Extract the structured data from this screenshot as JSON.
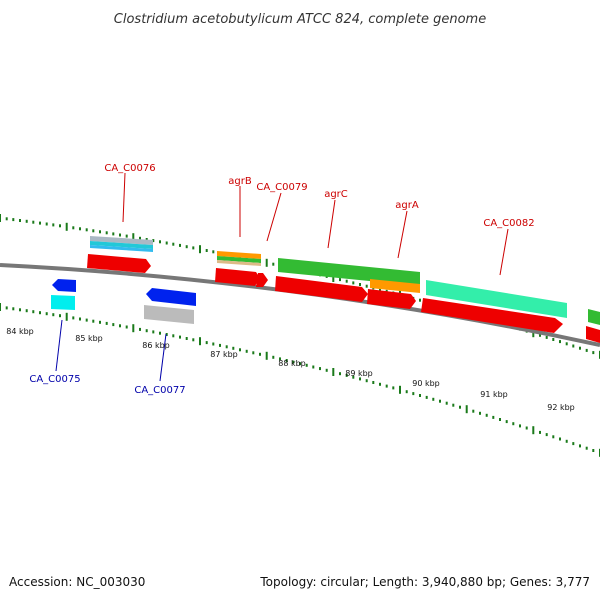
{
  "title": "Clostridium acetobutylicum ATCC 824, complete genome",
  "footer": {
    "accession": "Accession: NC_003030",
    "summary": "Topology: circular; Length: 3,940,880 bp; Genes: 3,777"
  },
  "colors": {
    "forward_label": "#cc0000",
    "reverse_label": "#0000aa",
    "backbone": "#777777",
    "ticks": "#1a7a1a",
    "cds": "#ee0000",
    "gene_green": "#33bb33",
    "gene_orange": "#ff9900",
    "gene_teal": "#33eeaa",
    "gene_blue": "#0022ee",
    "gene_cyan": "#00dddd",
    "gene_grey": "#bbbbbb"
  },
  "scale": {
    "unit": "kbp",
    "labels": [
      "84 kbp",
      "85 kbp",
      "86 kbp",
      "87 kbp",
      "88 kbp",
      "89 kbp",
      "90 kbp",
      "91 kbp",
      "92 kbp"
    ]
  },
  "genes": {
    "forward": [
      {
        "id": "CA_C0076",
        "label": "CA_C0076"
      },
      {
        "id": "agrB",
        "label": "agrB"
      },
      {
        "id": "CA_C0079",
        "label": "CA_C0079"
      },
      {
        "id": "agrC",
        "label": "agrC"
      },
      {
        "id": "agrA",
        "label": "agrA"
      },
      {
        "id": "CA_C0082",
        "label": "CA_C0082"
      }
    ],
    "reverse": [
      {
        "id": "CA_C0075",
        "label": "CA_C0075"
      },
      {
        "id": "CA_C0077",
        "label": "CA_C0077"
      }
    ]
  }
}
